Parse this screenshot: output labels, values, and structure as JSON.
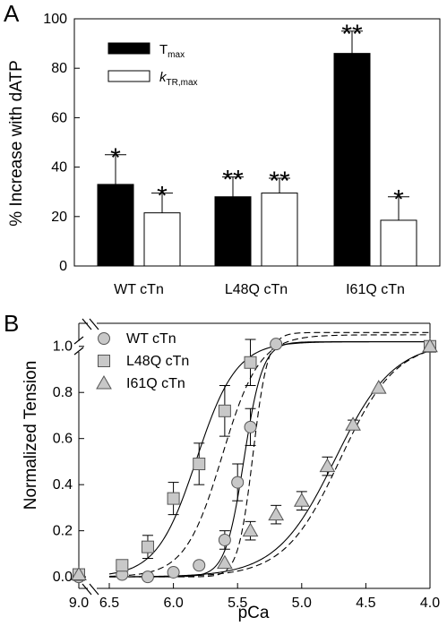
{
  "chart_data": [
    {
      "type": "bar",
      "panel_label": "A",
      "ylabel": "% Increase with dATP",
      "xlabel": "",
      "ylim": [
        0,
        100
      ],
      "yticks": [
        0,
        20,
        40,
        60,
        80,
        100
      ],
      "categories": [
        "WT cTn",
        "L48Q cTn",
        "I61Q cTn"
      ],
      "legend_position": "top-left",
      "series": [
        {
          "name": "Tmax",
          "legend_main": "T",
          "legend_sub": "max",
          "fill": "#000000",
          "values": [
            33,
            28,
            86
          ],
          "errors": [
            12,
            8,
            9
          ],
          "significance": [
            "*",
            "**",
            "**"
          ]
        },
        {
          "name": "kTR,max",
          "legend_main": "k",
          "legend_sub": "TR,max",
          "fill": "#ffffff",
          "values": [
            21.5,
            29.5,
            18.5
          ],
          "errors": [
            8,
            6,
            9.5
          ],
          "significance": [
            "*",
            "**",
            "*"
          ]
        }
      ]
    },
    {
      "type": "scatter",
      "panel_label": "B",
      "ylabel": "Normalized Tension",
      "xlabel": "pCa",
      "x_reversed": true,
      "axis_break": true,
      "xticks": [
        "9.0",
        "6.5",
        "6.0",
        "5.5",
        "5.0",
        "4.5",
        "4.0"
      ],
      "yticks": [
        "0.0",
        "0.2",
        "0.4",
        "0.6",
        "0.8",
        "1.0"
      ],
      "ylim": [
        -0.05,
        1.1
      ],
      "legend_position": "top-left",
      "series": [
        {
          "name": "WT cTn",
          "marker": "circle",
          "color": "#c8c8c8",
          "points": [
            {
              "x": 9.0,
              "y": 0.0,
              "err": 0.0
            },
            {
              "x": 6.4,
              "y": 0.01,
              "err": 0.0
            },
            {
              "x": 6.2,
              "y": 0.0,
              "err": 0.0
            },
            {
              "x": 6.0,
              "y": 0.02,
              "err": 0.0
            },
            {
              "x": 5.8,
              "y": 0.05,
              "err": 0.0
            },
            {
              "x": 5.6,
              "y": 0.16,
              "err": 0.04
            },
            {
              "x": 5.5,
              "y": 0.41,
              "err": 0.08
            },
            {
              "x": 5.4,
              "y": 0.65,
              "err": 0.08
            },
            {
              "x": 5.2,
              "y": 1.01,
              "err": 0.0
            },
            {
              "x": 4.0,
              "y": 1.0,
              "err": 0.0
            }
          ],
          "fit": {
            "ec50": 5.45,
            "hill": 6.0,
            "top": 1.02,
            "bottom": 0.0
          },
          "fit_datp": {
            "ec50": 5.38,
            "hill": 7.5,
            "top": 1.06,
            "bottom": 0.0
          }
        },
        {
          "name": "L48Q cTn",
          "marker": "square",
          "color": "#c8c8c8",
          "points": [
            {
              "x": 9.0,
              "y": 0.01,
              "err": 0.0
            },
            {
              "x": 6.4,
              "y": 0.05,
              "err": 0.02
            },
            {
              "x": 6.2,
              "y": 0.13,
              "err": 0.05
            },
            {
              "x": 6.0,
              "y": 0.34,
              "err": 0.07
            },
            {
              "x": 5.8,
              "y": 0.49,
              "err": 0.09
            },
            {
              "x": 5.6,
              "y": 0.72,
              "err": 0.11
            },
            {
              "x": 5.4,
              "y": 0.93,
              "err": 0.1
            },
            {
              "x": 4.0,
              "y": 1.0,
              "err": 0.0
            }
          ],
          "fit": {
            "ec50": 5.82,
            "hill": 2.8,
            "top": 1.02,
            "bottom": 0.0
          },
          "fit_datp": {
            "ec50": 5.62,
            "hill": 3.0,
            "top": 1.05,
            "bottom": 0.0
          }
        },
        {
          "name": "I61Q cTn",
          "marker": "triangle",
          "color": "#c8c8c8",
          "points": [
            {
              "x": 9.0,
              "y": 0.01,
              "err": 0.0
            },
            {
              "x": 5.6,
              "y": 0.06,
              "err": 0.0
            },
            {
              "x": 5.4,
              "y": 0.2,
              "err": 0.04
            },
            {
              "x": 5.2,
              "y": 0.27,
              "err": 0.04
            },
            {
              "x": 5.0,
              "y": 0.33,
              "err": 0.04
            },
            {
              "x": 4.8,
              "y": 0.48,
              "err": 0.04
            },
            {
              "x": 4.6,
              "y": 0.66,
              "err": 0.02
            },
            {
              "x": 4.4,
              "y": 0.82,
              "err": 0.0
            },
            {
              "x": 4.0,
              "y": 1.0,
              "err": 0.0
            }
          ],
          "fit": {
            "ec50": 4.74,
            "hill": 1.9,
            "top": 1.02,
            "bottom": 0.0
          },
          "fit_datp": {
            "ec50": 4.7,
            "hill": 2.0,
            "top": 1.02,
            "bottom": 0.0
          }
        }
      ]
    }
  ]
}
